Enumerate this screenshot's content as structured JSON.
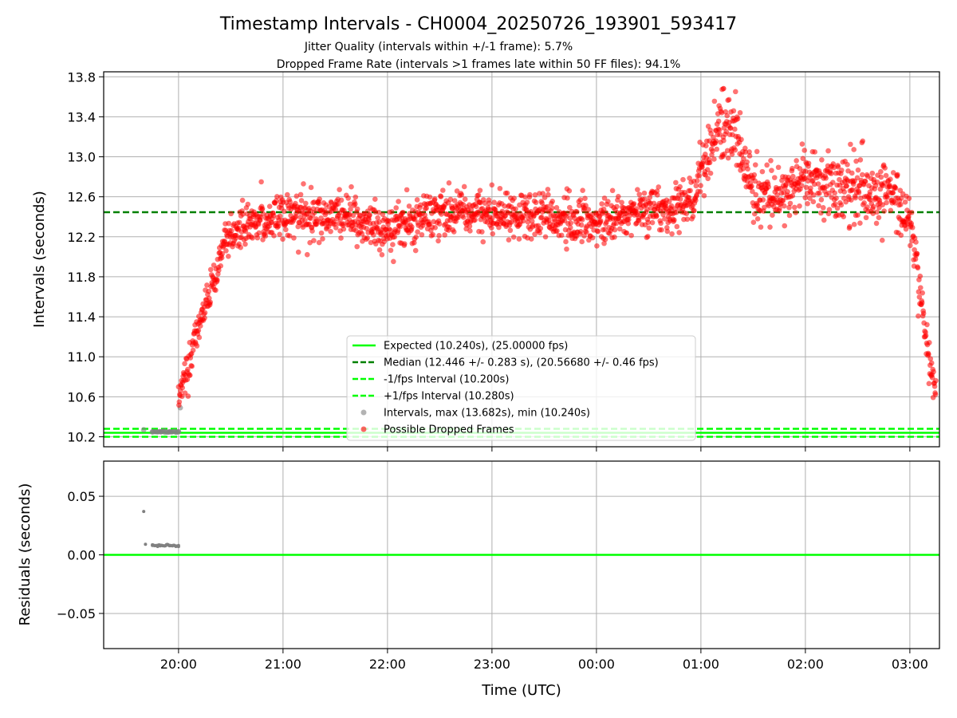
{
  "title": "Timestamp Intervals - CH0004_20250726_193901_593417",
  "subtitle_1": "Jitter Quality (intervals within +/-1 frame): 5.7%",
  "subtitle_2": "Dropped Frame Rate (intervals >1 frames late within 50 FF files): 94.1%",
  "colors": {
    "expected": "#00ff00",
    "median": "#008000",
    "intervals": "#808080",
    "dropped": "#ff0000",
    "grid": "#b0b0b0"
  },
  "chart_data": [
    {
      "type": "scatter",
      "name": "top",
      "ylabel": "Intervals (seconds)",
      "xlabel": "",
      "xlim": [
        "19:17",
        "03:17"
      ],
      "ylim": [
        10.1,
        13.85
      ],
      "yticks": [
        "10.2",
        "10.6",
        "11.0",
        "11.4",
        "11.8",
        "12.2",
        "12.6",
        "13.0",
        "13.4",
        "13.8"
      ],
      "xticks": [
        "20:00",
        "21:00",
        "22:00",
        "23:00",
        "00:00",
        "01:00",
        "02:00",
        "03:00"
      ],
      "grid": true,
      "legend_position": "lower center",
      "reference_lines": [
        {
          "label": "Expected (10.240s), (25.00000 fps)",
          "y": 10.24,
          "style": "solid",
          "color": "#00ff00"
        },
        {
          "label": "Median (12.446 +/- 0.283 s), (20.56680 +/- 0.46 fps)",
          "y": 12.446,
          "style": "dashed",
          "color": "#008000"
        },
        {
          "label": "-1/fps Interval (10.200s)",
          "y": 10.2,
          "style": "dashed",
          "color": "#00ff00"
        },
        {
          "label": "+1/fps Interval (10.280s)",
          "y": 10.28,
          "style": "dashed",
          "color": "#00ff00"
        }
      ],
      "series": [
        {
          "name": "Intervals, max (13.682s), min (10.240s)",
          "color": "#808080",
          "x": [
            "19:40",
            "19:45",
            "19:50",
            "19:55",
            "20:00",
            "20:01"
          ],
          "y": [
            10.27,
            10.25,
            10.25,
            10.25,
            10.25,
            10.49
          ]
        },
        {
          "name": "Possible Dropped Frames",
          "color": "#ff0000",
          "profile_x": [
            "20:00",
            "20:05",
            "20:10",
            "20:15",
            "20:20",
            "20:25",
            "20:30",
            "20:35",
            "20:40",
            "20:50",
            "21:00",
            "21:30",
            "22:00",
            "22:30",
            "23:00",
            "23:30",
            "00:00",
            "00:30",
            "00:55",
            "01:05",
            "01:10",
            "01:20",
            "01:30",
            "01:45",
            "02:00",
            "02:10",
            "02:30",
            "02:50",
            "03:00",
            "03:05",
            "03:10",
            "03:15"
          ],
          "profile_y": [
            10.6,
            10.9,
            11.2,
            11.5,
            11.8,
            12.05,
            12.2,
            12.28,
            12.33,
            12.38,
            12.4,
            12.42,
            12.25,
            12.45,
            12.42,
            12.42,
            12.35,
            12.45,
            12.55,
            13.1,
            13.3,
            13.2,
            12.6,
            12.55,
            12.8,
            12.75,
            12.65,
            12.6,
            12.4,
            11.8,
            11.1,
            10.6
          ],
          "max": 13.682
        }
      ]
    },
    {
      "type": "scatter",
      "name": "bottom",
      "ylabel": "Residuals (seconds)",
      "xlabel": "Time (UTC)",
      "xlim": [
        "19:17",
        "03:17"
      ],
      "ylim": [
        -0.08,
        0.08
      ],
      "yticks": [
        "−0.05",
        "0.00",
        "0.05"
      ],
      "xticks": [
        "20:00",
        "21:00",
        "22:00",
        "23:00",
        "00:00",
        "01:00",
        "02:00",
        "03:00"
      ],
      "grid": true,
      "reference_lines": [
        {
          "y": 0.0,
          "style": "solid",
          "color": "#00ff00"
        }
      ],
      "series": [
        {
          "name": "residuals",
          "color": "#808080",
          "x": [
            "19:40",
            "19:41",
            "19:45",
            "19:50",
            "19:55",
            "20:00"
          ],
          "y": [
            0.037,
            0.009,
            0.008,
            0.008,
            0.008,
            0.008
          ]
        }
      ]
    }
  ]
}
